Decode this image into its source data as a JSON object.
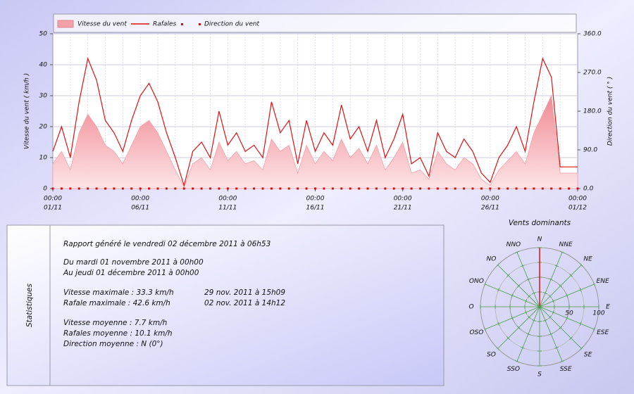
{
  "chart_data": {
    "type": "area-line",
    "legend": {
      "speed": "Vitesse du vent",
      "gust": "Rafales",
      "direction": "Direction du vent"
    },
    "ylabel": "Vitesse du vent ( km/h )",
    "y2label": "Direction du vent ( ° )",
    "x": [
      0,
      0.5,
      1,
      1.5,
      2,
      2.5,
      3,
      3.5,
      4,
      4.5,
      5,
      5.5,
      6,
      6.5,
      7,
      7.5,
      8,
      8.5,
      9,
      9.5,
      10,
      10.5,
      11,
      11.5,
      12,
      12.5,
      13,
      13.5,
      14,
      14.5,
      15,
      15.5,
      16,
      16.5,
      17,
      17.5,
      18,
      18.5,
      19,
      19.5,
      20,
      20.5,
      21,
      21.5,
      22,
      22.5,
      23,
      23.5,
      24,
      24.5,
      25,
      25.5,
      26,
      26.5,
      27,
      27.5,
      28,
      28.5,
      29,
      29.5,
      30
    ],
    "series": [
      {
        "name": "Vitesse du vent",
        "color": "#f4a0a8",
        "values": [
          8,
          12,
          6,
          18,
          24,
          20,
          14,
          12,
          8,
          14,
          20,
          22,
          18,
          12,
          6,
          0.5,
          8,
          10,
          6,
          15,
          9,
          12,
          8,
          9,
          6,
          16,
          12,
          14,
          5,
          14,
          8,
          12,
          9,
          16,
          10,
          13,
          8,
          14,
          6,
          10,
          15,
          5,
          6,
          3,
          12,
          8,
          6,
          10,
          8,
          3,
          1,
          6,
          9,
          12,
          8,
          18,
          24,
          30,
          5,
          5,
          5
        ]
      },
      {
        "name": "Rafales",
        "color": "#e01010",
        "values": [
          12,
          20,
          10,
          28,
          42,
          35,
          22,
          18,
          12,
          22,
          30,
          34,
          28,
          18,
          10,
          1,
          12,
          15,
          10,
          25,
          14,
          18,
          12,
          14,
          10,
          28,
          18,
          22,
          8,
          22,
          12,
          18,
          14,
          27,
          16,
          20,
          12,
          22,
          10,
          16,
          24,
          8,
          10,
          4,
          18,
          12,
          10,
          16,
          12,
          5,
          2,
          10,
          14,
          20,
          12,
          28,
          42,
          36,
          7,
          7,
          7
        ]
      },
      {
        "name": "Direction du vent",
        "color": "#d01010",
        "axis": "y2",
        "values": [
          0,
          0,
          0,
          0,
          0,
          0,
          0,
          0,
          0,
          0,
          0,
          0,
          0,
          0,
          0,
          0,
          0,
          0,
          0,
          0,
          0,
          0,
          0,
          0,
          0,
          0,
          0,
          0,
          0,
          0,
          0,
          0,
          0,
          0,
          0,
          0,
          0,
          0,
          0,
          0,
          0,
          0,
          0,
          0,
          0,
          0,
          0,
          0,
          0,
          0,
          0,
          0,
          0,
          0,
          0,
          0,
          0,
          0,
          0,
          0,
          0
        ]
      }
    ],
    "xlim": [
      0,
      30
    ],
    "xticks": [
      {
        "value": 0,
        "label": "01/11",
        "time": "00:00"
      },
      {
        "value": 5,
        "label": "06/11",
        "time": "00:00"
      },
      {
        "value": 10,
        "label": "11/11",
        "time": "00:00"
      },
      {
        "value": 15,
        "label": "16/11",
        "time": "00:00"
      },
      {
        "value": 20,
        "label": "21/11",
        "time": "00:00"
      },
      {
        "value": 25,
        "label": "26/11",
        "time": "00:00"
      },
      {
        "value": 30,
        "label": "01/12",
        "time": "00:00"
      }
    ],
    "ylim": [
      0,
      50
    ],
    "yticks": [
      0,
      10,
      20,
      30,
      40,
      50
    ],
    "y2lim": [
      0,
      360
    ],
    "y2ticks": [
      {
        "value": 0,
        "label": "0.0"
      },
      {
        "value": 90,
        "label": "90.0"
      },
      {
        "value": 180,
        "label": "180.0"
      },
      {
        "value": 270,
        "label": "270.0"
      },
      {
        "value": 360,
        "label": "360.0"
      }
    ],
    "grid": true
  },
  "rose": {
    "title": "Vents dominants",
    "directions": [
      "N",
      "NNE",
      "NE",
      "ENE",
      "E",
      "ESE",
      "SE",
      "SSE",
      "S",
      "SSO",
      "SO",
      "OSO",
      "O",
      "ONO",
      "NO",
      "NNO"
    ],
    "values": [
      100,
      0,
      0,
      0,
      0,
      0,
      0,
      0,
      0,
      0,
      0,
      0,
      0,
      0,
      0,
      0
    ],
    "rlim": [
      0,
      100
    ],
    "rticks": [
      50,
      100
    ]
  },
  "stats": {
    "title": "Statistiques",
    "report": "Rapport généré le vendredi 02 décembre 2011 à 06h53",
    "period": [
      "Du mardi 01 novembre 2011 à 00h00",
      "Au jeudi 01 décembre 2011 à 00h00"
    ],
    "maxima": [
      [
        "Vitesse maximale : 33.3 km/h",
        "29 nov. 2011 à 15h09"
      ],
      [
        "Rafale maximale : 42.6 km/h",
        "02 nov. 2011 à 14h12"
      ]
    ],
    "averages": [
      "Vitesse moyenne : 7.7 km/h",
      "Rafales moyenne : 10.1 km/h",
      "Direction moyenne : N (0°)"
    ]
  }
}
